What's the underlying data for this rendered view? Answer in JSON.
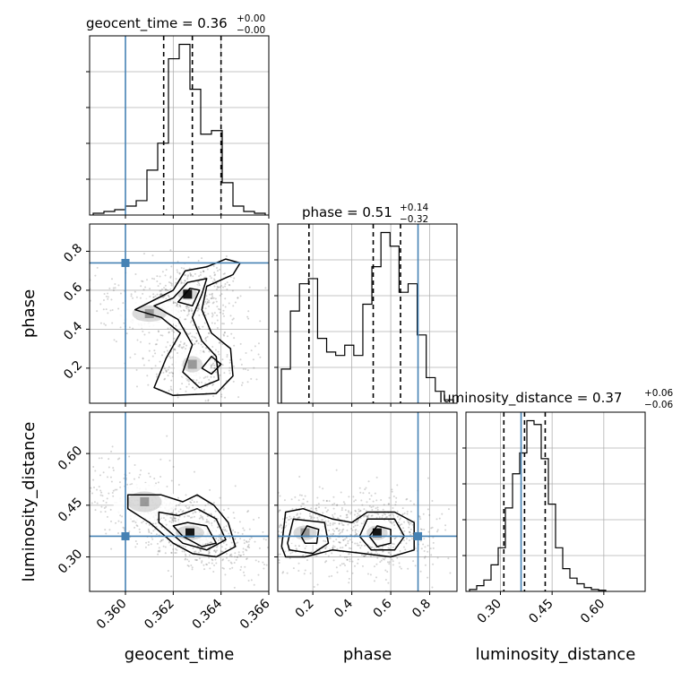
{
  "chart_data": {
    "type": "corner",
    "grid": true,
    "truth_color": "#4682b4",
    "parameters": [
      {
        "name": "geocent_time",
        "label": "geocent_time",
        "range": [
          0.3585,
          0.366
        ],
        "ticks": [
          0.36,
          0.362,
          0.364,
          0.366
        ],
        "tick_labels": [
          "0.360",
          "0.362",
          "0.364",
          "0.366"
        ],
        "truth": 0.36,
        "title_main": "geocent_time = 0.36",
        "title_plus": "+0.00",
        "title_minus": "−0.00"
      },
      {
        "name": "phase",
        "label": "phase",
        "range": [
          0.02,
          0.94
        ],
        "ticks": [
          0.2,
          0.4,
          0.6,
          0.8
        ],
        "tick_labels": [
          "0.2",
          "0.4",
          "0.6",
          "0.8"
        ],
        "truth": 0.74,
        "title_main": "phase = 0.51",
        "title_plus": "+0.14",
        "title_minus": "−0.32"
      },
      {
        "name": "luminosity_distance",
        "label": "luminosity_distance",
        "range": [
          0.2,
          0.72
        ],
        "ticks": [
          0.3,
          0.45,
          0.6
        ],
        "tick_labels": [
          "0.30",
          "0.45",
          "0.60"
        ],
        "truth": 0.36,
        "title_main": "luminosity_distance = 0.37",
        "title_plus": "+0.06",
        "title_minus": "−0.06"
      }
    ],
    "quantiles": [
      [
        0.3616,
        0.3628,
        0.364
      ],
      [
        0.18,
        0.51,
        0.65
      ],
      [
        0.31,
        0.37,
        0.43
      ]
    ],
    "histograms": [
      [
        1,
        2,
        3,
        5,
        8,
        25,
        40,
        87,
        95,
        70,
        45,
        47,
        18,
        5,
        2,
        1
      ],
      [
        20,
        54,
        70,
        73,
        38,
        30,
        28,
        34,
        28,
        58,
        80,
        100,
        92,
        65,
        70,
        40,
        15,
        7,
        2
      ],
      [
        1,
        3,
        6,
        14,
        23,
        44,
        62,
        73,
        90,
        88,
        70,
        46,
        23,
        12,
        7,
        4,
        2,
        1,
        0.6
      ]
    ]
  }
}
